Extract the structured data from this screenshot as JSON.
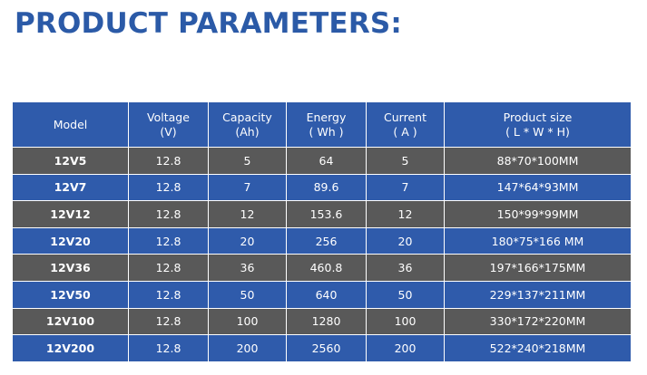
{
  "title": "PRODUCT PARAMETERS:",
  "table": {
    "headers": [
      {
        "line1": "Model",
        "line2": ""
      },
      {
        "line1": "Voltage",
        "line2": "(V)"
      },
      {
        "line1": "Capacity",
        "line2": "(Ah)"
      },
      {
        "line1": "Energy",
        "line2": "( Wh )"
      },
      {
        "line1": "Current",
        "line2": "( A )"
      },
      {
        "line1": "Product size",
        "line2": "( L * W * H)"
      }
    ],
    "rows": [
      {
        "model": "12V5",
        "voltage": "12.8",
        "capacity": "5",
        "energy": "64",
        "current": "5",
        "size": "88*70*100MM"
      },
      {
        "model": "12V7",
        "voltage": "12.8",
        "capacity": "7",
        "energy": "89.6",
        "current": "7",
        "size": "147*64*93MM"
      },
      {
        "model": "12V12",
        "voltage": "12.8",
        "capacity": "12",
        "energy": "153.6",
        "current": "12",
        "size": "150*99*99MM"
      },
      {
        "model": "12V20",
        "voltage": "12.8",
        "capacity": "20",
        "energy": "256",
        "current": "20",
        "size": "180*75*166 MM"
      },
      {
        "model": "12V36",
        "voltage": "12.8",
        "capacity": "36",
        "energy": "460.8",
        "current": "36",
        "size": "197*166*175MM"
      },
      {
        "model": "12V50",
        "voltage": "12.8",
        "capacity": "50",
        "energy": "640",
        "current": "50",
        "size": "229*137*211MM"
      },
      {
        "model": "12V100",
        "voltage": "12.8",
        "capacity": "100",
        "energy": "1280",
        "current": "100",
        "size": "330*172*220MM"
      },
      {
        "model": "12V200",
        "voltage": "12.8",
        "capacity": "200",
        "energy": "2560",
        "current": "200",
        "size": "522*240*218MM"
      }
    ],
    "colors": {
      "header_bg": "#2f5bab",
      "dark_row_bg": "#595959",
      "blue_row_bg": "#2f5bab",
      "title_color": "#2b5aa7"
    }
  }
}
